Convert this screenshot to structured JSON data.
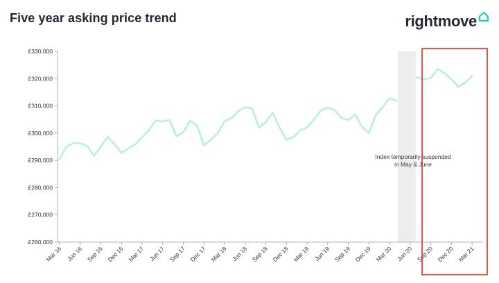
{
  "header": {
    "title": "Five year asking price trend",
    "brand": "rightmove"
  },
  "colors": {
    "line": "#b9f0dc",
    "suspended_band": "#ededed",
    "highlight_box": "#e8412c",
    "text": "#262637",
    "brand_accent": "#00deb6"
  },
  "icons": {
    "brand": "house-outline-icon"
  },
  "chart_data": {
    "type": "line",
    "title": "Five year asking price trend",
    "xlabel": "",
    "ylabel": "",
    "ylim": [
      260000,
      330000
    ],
    "y_ticks": [
      260000,
      270000,
      280000,
      290000,
      300000,
      310000,
      320000,
      330000
    ],
    "y_tick_labels": [
      "£260,000",
      "£270,000",
      "£280,000",
      "£290,000",
      "£300,000",
      "£310,000",
      "£320,000",
      "£330,000"
    ],
    "x_tick_labels": [
      "Mar 16",
      "Jun 16",
      "Sep 16",
      "Dec 16",
      "Mar 17",
      "Jun 17",
      "Sep 17",
      "Dec 17",
      "Mar 18",
      "Jun 18",
      "Sep 18",
      "Dec 18",
      "Mar 19",
      "Jun 19",
      "Sep 19",
      "Dec 19",
      "Mar 20",
      "Jun 20",
      "Sep 20",
      "Dec 20",
      "Mar 21"
    ],
    "grid": false,
    "legend": "none",
    "series": [
      {
        "segments": [
          {
            "x": [
              "Mar 16",
              "Apr 16",
              "May 16",
              "Jun 16",
              "Jul 16",
              "Aug 16",
              "Sep 16",
              "Oct 16",
              "Nov 16",
              "Dec 16",
              "Jan 17",
              "Feb 17",
              "Mar 17",
              "Apr 17",
              "May 17",
              "Jun 17",
              "Jul 17",
              "Aug 17",
              "Sep 17",
              "Oct 17",
              "Nov 17",
              "Dec 17",
              "Jan 18",
              "Feb 18",
              "Mar 18",
              "Apr 18",
              "May 18",
              "Jun 18",
              "Jul 18",
              "Aug 18",
              "Sep 18",
              "Oct 18",
              "Nov 18",
              "Dec 18",
              "Jan 19",
              "Feb 19",
              "Mar 19",
              "Apr 19",
              "May 19",
              "Jun 19",
              "Jul 19",
              "Aug 19",
              "Sep 19",
              "Oct 19",
              "Nov 19",
              "Dec 19",
              "Jan 20",
              "Feb 20",
              "Mar 20",
              "Apr 20"
            ],
            "y": [
              290500,
              295000,
              296300,
              296300,
              295300,
              291700,
              295000,
              298600,
              296000,
              292700,
              294500,
              295800,
              298500,
              301000,
              304700,
              304300,
              304800,
              298800,
              300300,
              304500,
              302700,
              295500,
              297500,
              300000,
              304300,
              305500,
              308000,
              309500,
              309100,
              302000,
              304000,
              307500,
              302000,
              297500,
              298500,
              301000,
              302000,
              305000,
              308300,
              309300,
              308500,
              305500,
              304800,
              306800,
              302300,
              300000,
              306600,
              309500,
              312800,
              311900
            ]
          },
          {
            "x": [
              "Jul 20",
              "Aug 20",
              "Sep 20",
              "Oct 20",
              "Nov 20",
              "Dec 20",
              "Jan 21",
              "Feb 21",
              "Mar 21",
              "Apr 21"
            ],
            "y": [
              320500,
              319700,
              320200,
              323500,
              322000,
              319800,
              317000,
              318500,
              321000,
              null
            ]
          }
        ]
      }
    ],
    "annotations": [
      {
        "text": "Index temporarily suspended",
        "line2": "in May & June"
      }
    ]
  }
}
